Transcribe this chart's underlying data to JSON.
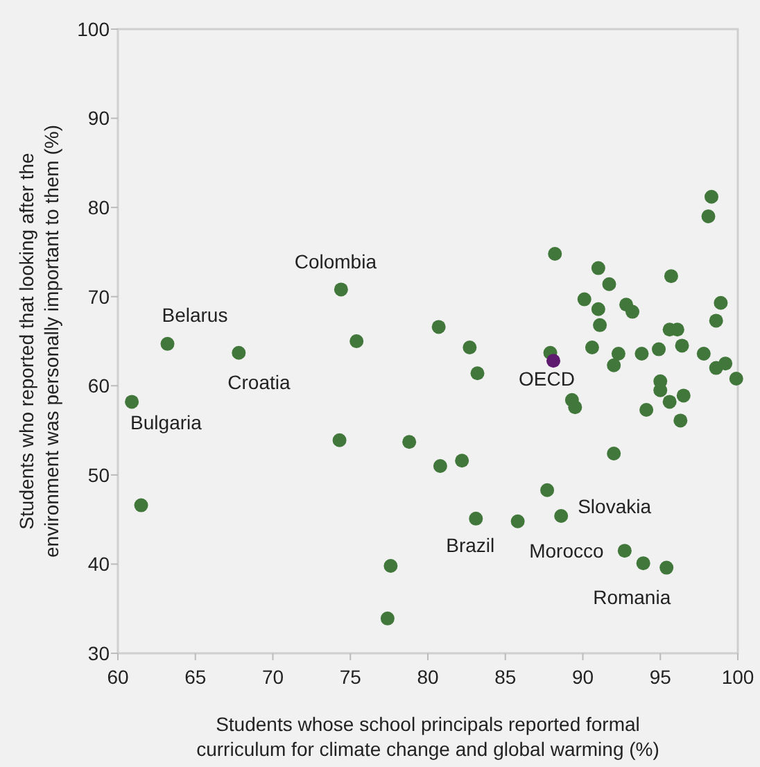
{
  "chart_data": {
    "type": "scatter",
    "xlabel": "Students whose school principals reported formal curriculum for climate change and global warming (%)",
    "ylabel": "Students who reported that looking after the environment was personally important to them (%)",
    "xlim": [
      60,
      100
    ],
    "ylim": [
      30,
      100
    ],
    "xticks": [
      60,
      65,
      70,
      75,
      80,
      85,
      90,
      95,
      100
    ],
    "yticks": [
      30,
      40,
      50,
      60,
      70,
      80,
      90,
      100
    ],
    "grid": false,
    "marker": "circle",
    "series": [
      {
        "color": "#41773a",
        "x": [
          60.9,
          61.5,
          63.2,
          67.8,
          74.4,
          75.4,
          74.3,
          78.8,
          77.6,
          77.4,
          80.7,
          80.8,
          82.2,
          82.7,
          83.2,
          83.1,
          85.8,
          87.7,
          88.6,
          87.9,
          88.2,
          89.3,
          89.5,
          90.1,
          90.6,
          91.0,
          91.0,
          91.1,
          91.7,
          92.0,
          92.3,
          92.0,
          92.8,
          93.2,
          92.7,
          93.8,
          94.1,
          93.9,
          94.9,
          95.0,
          95.0,
          95.6,
          95.4,
          95.7,
          95.6,
          96.1,
          96.4,
          96.5,
          96.3,
          97.8,
          98.1,
          98.3,
          98.6,
          98.9,
          98.6,
          99.2,
          99.9
        ],
        "values": [
          58.2,
          46.6,
          64.7,
          63.7,
          70.8,
          65.0,
          53.9,
          53.7,
          39.8,
          33.9,
          66.6,
          51.0,
          51.6,
          64.3,
          61.4,
          45.1,
          44.8,
          48.3,
          45.4,
          63.7,
          74.8,
          58.4,
          57.6,
          69.7,
          64.3,
          73.2,
          68.6,
          66.8,
          71.4,
          62.3,
          63.6,
          52.4,
          69.1,
          68.3,
          41.5,
          63.6,
          57.3,
          40.1,
          64.1,
          60.5,
          59.5,
          58.2,
          39.6,
          72.3,
          66.3,
          66.3,
          64.5,
          58.9,
          56.1,
          63.6,
          79.0,
          81.2,
          67.3,
          69.3,
          62.0,
          62.5,
          60.8
        ]
      },
      {
        "color": "#5e1a6e",
        "x": [
          88.1
        ],
        "values": [
          62.8
        ]
      }
    ],
    "annotations": [
      {
        "text": "Bulgaria",
        "x": 60.9,
        "y": 58.2
      },
      {
        "text": "Belarus",
        "x": 63.2,
        "y": 64.7
      },
      {
        "text": "Croatia",
        "x": 67.8,
        "y": 63.7
      },
      {
        "text": "Colombia",
        "x": 74.4,
        "y": 70.8
      },
      {
        "text": "OECD",
        "x": 88.1,
        "y": 62.8
      },
      {
        "text": "Brazil",
        "x": 83.1,
        "y": 45.1
      },
      {
        "text": "Slovakia",
        "x": 88.6,
        "y": 45.4
      },
      {
        "text": "Morocco",
        "x": 92.7,
        "y": 41.5
      },
      {
        "text": "Romania",
        "x": 95.4,
        "y": 39.6
      }
    ]
  }
}
